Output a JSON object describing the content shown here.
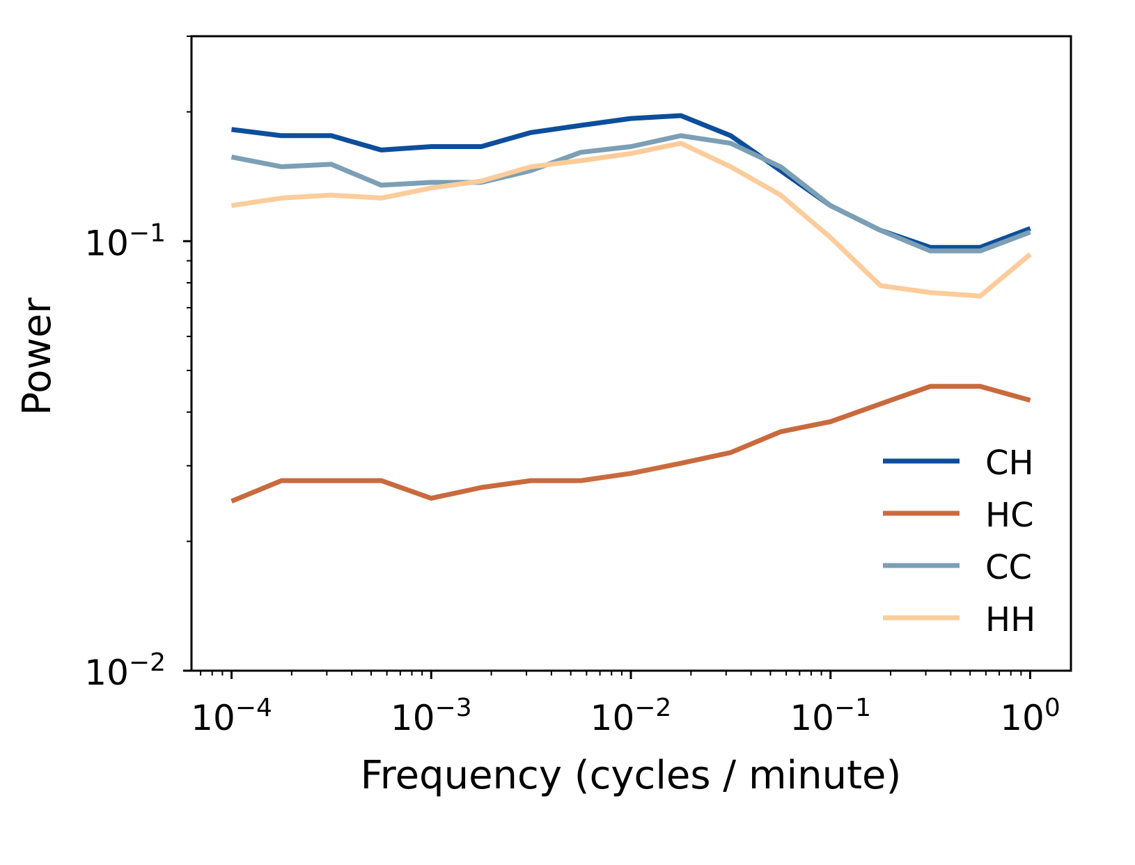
{
  "chart_data": {
    "type": "line",
    "title": "",
    "xlabel": "Frequency (cycles / minute)",
    "ylabel": "Power",
    "xscale": "log",
    "yscale": "log",
    "xlim": [
      6.3e-05,
      1.6
    ],
    "ylim": [
      0.01,
      0.3
    ],
    "x_ticks": [
      {
        "value": 0.0001,
        "base": "10",
        "exp": "−4"
      },
      {
        "value": 0.001,
        "base": "10",
        "exp": "−3"
      },
      {
        "value": 0.01,
        "base": "10",
        "exp": "−2"
      },
      {
        "value": 0.1,
        "base": "10",
        "exp": "−1"
      },
      {
        "value": 1,
        "base": "10",
        "exp": "0"
      }
    ],
    "y_ticks": [
      {
        "value": 0.01,
        "base": "10",
        "exp": "−2"
      },
      {
        "value": 0.1,
        "base": "10",
        "exp": "−1"
      }
    ],
    "grid": false,
    "legend_position": "lower-right",
    "x": [
      0.0001,
      0.000178,
      0.000316,
      0.000562,
      0.001,
      0.00178,
      0.00316,
      0.00562,
      0.01,
      0.0178,
      0.0316,
      0.0562,
      0.1,
      0.178,
      0.316,
      0.562,
      1.0
    ],
    "series": [
      {
        "name": "CH",
        "color": "#0d4e9b",
        "values": [
          0.182,
          0.176,
          0.176,
          0.163,
          0.166,
          0.166,
          0.179,
          0.186,
          0.193,
          0.196,
          0.176,
          0.146,
          0.121,
          0.106,
          0.0967,
          0.0967,
          0.107
        ]
      },
      {
        "name": "HC",
        "color": "#c96a3e",
        "values": [
          0.0248,
          0.0277,
          0.0277,
          0.0277,
          0.0252,
          0.0267,
          0.0277,
          0.0277,
          0.0288,
          0.0304,
          0.0322,
          0.036,
          0.038,
          0.0418,
          0.0459,
          0.0459,
          0.0426
        ]
      },
      {
        "name": "CC",
        "color": "#7b9fb5",
        "values": [
          0.157,
          0.149,
          0.151,
          0.135,
          0.137,
          0.137,
          0.146,
          0.161,
          0.166,
          0.176,
          0.169,
          0.149,
          0.121,
          0.106,
          0.0949,
          0.0949,
          0.105
        ]
      },
      {
        "name": "HH",
        "color": "#fccc9b",
        "values": [
          0.121,
          0.126,
          0.128,
          0.126,
          0.133,
          0.138,
          0.149,
          0.154,
          0.16,
          0.169,
          0.149,
          0.128,
          0.102,
          0.0788,
          0.0759,
          0.0745,
          0.0932
        ]
      }
    ]
  }
}
